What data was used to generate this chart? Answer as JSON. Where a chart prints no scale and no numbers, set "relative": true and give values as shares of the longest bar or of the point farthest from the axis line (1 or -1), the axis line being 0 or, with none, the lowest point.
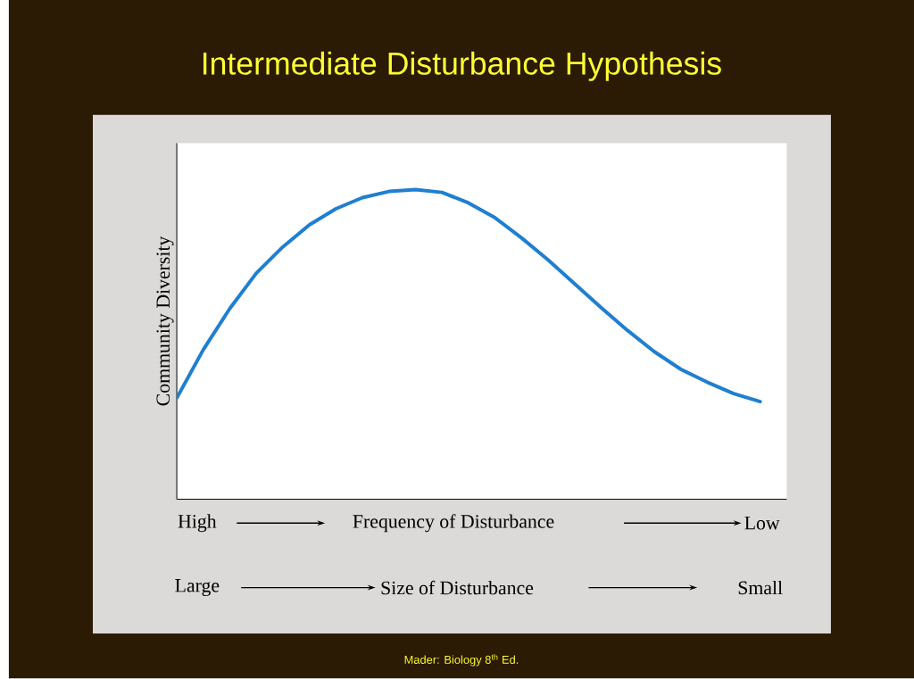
{
  "chart_data": {
    "type": "line",
    "title": "Intermediate Disturbance Hypothesis",
    "ylabel": "Community Diversity",
    "xlabel": "Frequency of Disturbance",
    "relative": true,
    "marker": "none",
    "line_style": "solid",
    "categories": [
      null,
      null,
      null,
      null,
      null,
      null,
      null,
      null,
      null,
      null,
      null,
      null,
      null,
      null,
      null,
      null,
      null,
      null,
      null,
      null,
      null,
      null,
      null
    ],
    "series": [
      {
        "color": "#1f7fd0",
        "values": [
          0.327,
          0.483,
          0.616,
          0.73,
          0.815,
          0.886,
          0.938,
          0.974,
          0.994,
          1,
          0.991,
          0.957,
          0.909,
          0.844,
          0.773,
          0.696,
          0.619,
          0.545,
          0.477,
          0.42,
          0.378,
          0.341,
          0.315
        ]
      }
    ],
    "annotations": [
      "High",
      "Low",
      "Large",
      "Size of Disturbance",
      "Small",
      "Mader: Biology 8$^{th}$ Ed."
    ]
  }
}
